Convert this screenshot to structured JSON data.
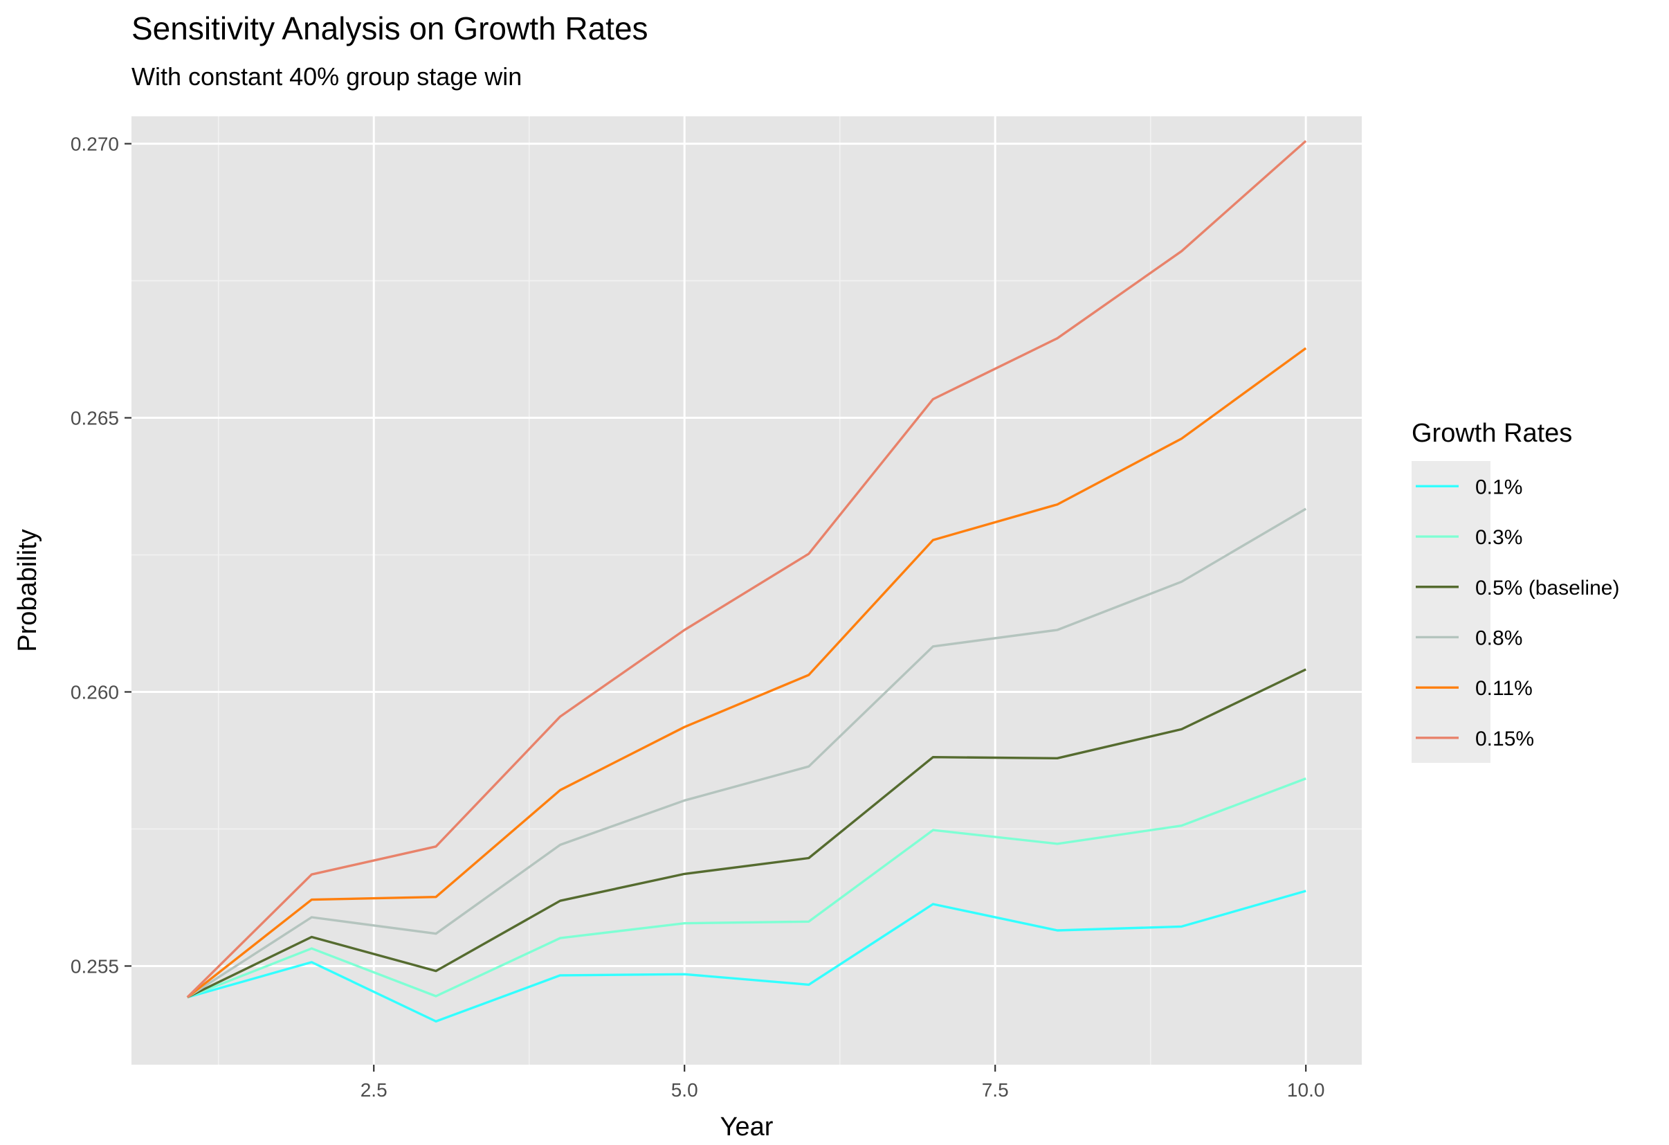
{
  "chart_data": {
    "type": "line",
    "title": "Sensitivity Analysis on Growth Rates",
    "subtitle": "With constant 40% group stage win",
    "xlabel": "Year",
    "ylabel": "Probability",
    "xlim": [
      0.55,
      10.45
    ],
    "ylim": [
      0.2532,
      0.2705
    ],
    "xticks": [
      2.5,
      5.0,
      7.5,
      10.0
    ],
    "xtick_labels": [
      "2.5",
      "5.0",
      "7.5",
      "10.0"
    ],
    "xminor": [
      1.25,
      3.75,
      6.25,
      8.75
    ],
    "yticks": [
      0.255,
      0.26,
      0.265,
      0.27
    ],
    "ytick_labels": [
      "0.255",
      "0.260",
      "0.265",
      "0.270"
    ],
    "yminor": [
      0.2575,
      0.2625,
      0.2675
    ],
    "grid": true,
    "legend_title": "Growth Rates",
    "legend_position": "right",
    "x": [
      1,
      2,
      3,
      4,
      5,
      6,
      7,
      8,
      9,
      10
    ],
    "series": [
      {
        "name": "0.1%",
        "color": "#33ffff",
        "values": [
          0.25443,
          0.25507,
          0.25399,
          0.25483,
          0.25485,
          0.25466,
          0.25613,
          0.25565,
          0.25572,
          0.25637
        ]
      },
      {
        "name": "0.3%",
        "color": "#7fffd4",
        "values": [
          0.25443,
          0.25532,
          0.25445,
          0.25551,
          0.25578,
          0.25581,
          0.25748,
          0.25723,
          0.25756,
          0.25842
        ]
      },
      {
        "name": "0.5% (baseline)",
        "color": "#556b2f",
        "values": [
          0.25443,
          0.25553,
          0.25491,
          0.25619,
          0.25668,
          0.25697,
          0.25881,
          0.25879,
          0.25932,
          0.26041
        ]
      },
      {
        "name": "0.8%",
        "color": "#b4c4be",
        "values": [
          0.25443,
          0.25589,
          0.25559,
          0.25721,
          0.25802,
          0.25864,
          0.26083,
          0.26113,
          0.26201,
          0.26334
        ]
      },
      {
        "name": "0.11%",
        "color": "#ff7f0e",
        "values": [
          0.25443,
          0.25621,
          0.25626,
          0.25821,
          0.25936,
          0.26031,
          0.26277,
          0.26342,
          0.26462,
          0.26627
        ]
      },
      {
        "name": "0.15%",
        "color": "#e8826a",
        "values": [
          0.25443,
          0.25667,
          0.25718,
          0.25955,
          0.26113,
          0.26252,
          0.26534,
          0.26645,
          0.26804,
          0.27005
        ]
      }
    ]
  }
}
